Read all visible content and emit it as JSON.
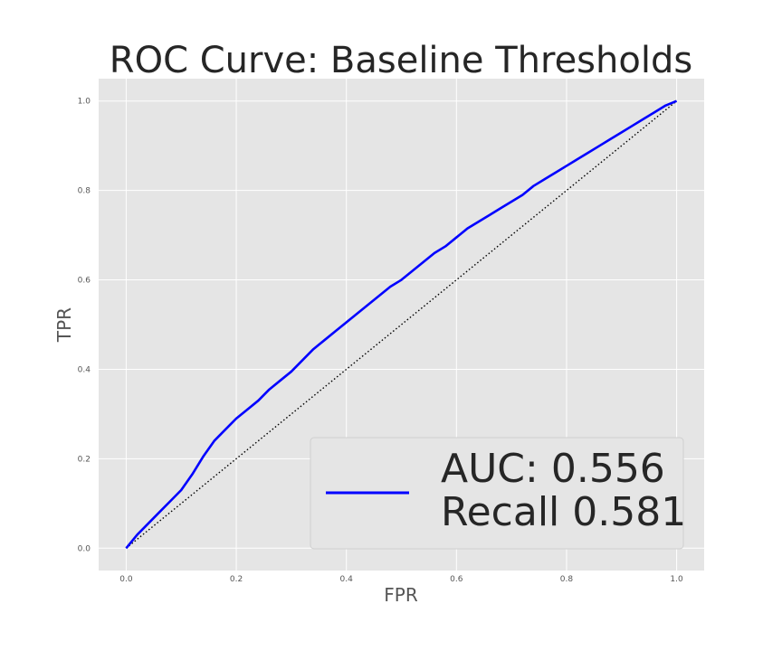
{
  "chart_data": {
    "type": "line",
    "title": "ROC Curve: Baseline Thresholds",
    "xlabel": "FPR",
    "ylabel": "TPR",
    "xlim": [
      -0.05,
      1.05
    ],
    "ylim": [
      -0.05,
      1.05
    ],
    "xticks": [
      "0.0",
      "0.2",
      "0.4",
      "0.6",
      "0.8",
      "1.0"
    ],
    "yticks": [
      "0.0",
      "0.2",
      "0.4",
      "0.6",
      "0.8",
      "1.0"
    ],
    "grid": true,
    "background": "#e5e5e5",
    "grid_color": "#ffffff",
    "legend_position": "lower-right",
    "legend": {
      "line1": "AUC: 0.556",
      "line2": "Recall 0.581"
    },
    "series": [
      {
        "color": "#0000ff",
        "style": "solid",
        "x": [
          0.0,
          0.02,
          0.04,
          0.06,
          0.08,
          0.1,
          0.12,
          0.14,
          0.16,
          0.18,
          0.2,
          0.22,
          0.24,
          0.26,
          0.28,
          0.3,
          0.32,
          0.34,
          0.36,
          0.38,
          0.4,
          0.42,
          0.44,
          0.46,
          0.48,
          0.5,
          0.52,
          0.54,
          0.56,
          0.58,
          0.6,
          0.62,
          0.64,
          0.66,
          0.68,
          0.7,
          0.72,
          0.74,
          0.76,
          0.78,
          0.8,
          0.82,
          0.84,
          0.86,
          0.88,
          0.9,
          0.92,
          0.94,
          0.96,
          0.98,
          1.0
        ],
        "y": [
          0.0,
          0.03,
          0.055,
          0.08,
          0.105,
          0.13,
          0.165,
          0.205,
          0.24,
          0.265,
          0.29,
          0.31,
          0.33,
          0.355,
          0.375,
          0.395,
          0.42,
          0.445,
          0.465,
          0.485,
          0.505,
          0.525,
          0.545,
          0.565,
          0.585,
          0.6,
          0.62,
          0.64,
          0.66,
          0.675,
          0.695,
          0.715,
          0.73,
          0.745,
          0.76,
          0.775,
          0.79,
          0.81,
          0.825,
          0.84,
          0.855,
          0.87,
          0.885,
          0.9,
          0.915,
          0.93,
          0.945,
          0.96,
          0.975,
          0.99,
          1.0
        ]
      },
      {
        "color": "#000000",
        "style": "dotted",
        "x": [
          0.0,
          1.0
        ],
        "y": [
          0.0,
          1.0
        ]
      }
    ]
  }
}
